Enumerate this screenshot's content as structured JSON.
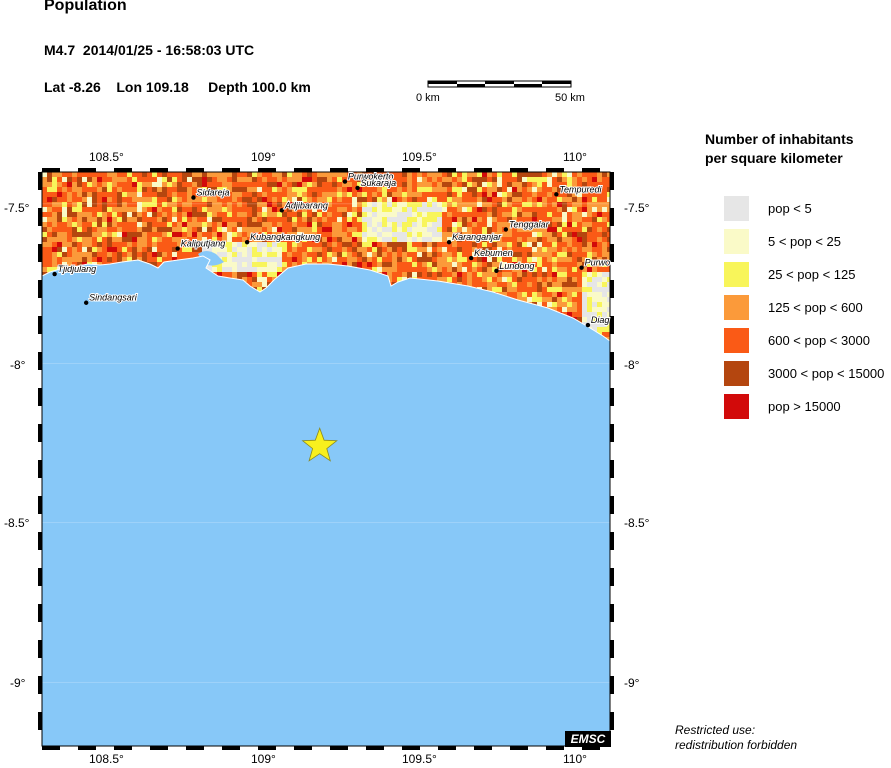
{
  "header": {
    "title": "Population",
    "event": "M4.7  2014/01/25 - 16:58:03 UTC",
    "location": "Lat -8.26    Lon 109.18     Depth 100.0 km"
  },
  "scale": {
    "start_label": "0 km",
    "end_label": "50 km"
  },
  "legend": {
    "title_line1": "Number of inhabitants",
    "title_line2": "per square kilometer",
    "items": [
      {
        "label": "pop < 5",
        "color": "#e6e6e6"
      },
      {
        "label": "5 < pop < 25",
        "color": "#fafac8"
      },
      {
        "label": "25 < pop < 125",
        "color": "#f8f55a"
      },
      {
        "label": "125 < pop < 600",
        "color": "#fb9a3a"
      },
      {
        "label": "600 < pop < 3000",
        "color": "#fa5a16"
      },
      {
        "label": "3000 < pop < 15000",
        "color": "#b4460f"
      },
      {
        "label": "pop > 15000",
        "color": "#d20a0a"
      }
    ]
  },
  "axes": {
    "top_lon": [
      "108.5°",
      "109°",
      "109.5°",
      "110°"
    ],
    "bottom_lon": [
      "108.5°",
      "109°",
      "109.5°",
      "110°"
    ],
    "left_lat": [
      "-7.5°",
      "-8°",
      "-8.5°",
      "-9°"
    ],
    "right_lat": [
      "-7.5°",
      "-8°",
      "-8.5°",
      "-9°"
    ]
  },
  "towns": [
    {
      "name": "Purwokerto",
      "lon": 109.26,
      "lat": -7.43
    },
    {
      "name": "Sukaraja",
      "lon": 109.3,
      "lat": -7.45
    },
    {
      "name": "Sidareja",
      "lon": 108.78,
      "lat": -7.48
    },
    {
      "name": "Tempuredi",
      "lon": 109.93,
      "lat": -7.47
    },
    {
      "name": "Adjibarang",
      "lon": 109.06,
      "lat": -7.52
    },
    {
      "name": "Tenggalar",
      "lon": 109.77,
      "lat": -7.58
    },
    {
      "name": "Karanganjar",
      "lon": 109.59,
      "lat": -7.62
    },
    {
      "name": "Kaliputjang",
      "lon": 108.73,
      "lat": -7.64
    },
    {
      "name": "Kubangkangkung",
      "lon": 108.95,
      "lat": -7.62
    },
    {
      "name": "Kebumen",
      "lon": 109.66,
      "lat": -7.67
    },
    {
      "name": "Lundong",
      "lon": 109.74,
      "lat": -7.71
    },
    {
      "name": "Purwo",
      "lon": 110.01,
      "lat": -7.7
    },
    {
      "name": "Tjidjulang",
      "lon": 108.34,
      "lat": -7.72
    },
    {
      "name": "Sindangsari",
      "lon": 108.44,
      "lat": -7.81
    },
    {
      "name": "Diag",
      "lon": 110.03,
      "lat": -7.88
    }
  ],
  "epicenter": {
    "lon": 109.18,
    "lat": -8.26,
    "magnitude": "M4.7"
  },
  "colors": {
    "sea": "#87c8f8",
    "star": "#f8f01e",
    "frame": "#000000"
  },
  "watermark": "EMSC",
  "note": {
    "line1": "Restricted use:",
    "line2": "redistribution forbidden"
  }
}
